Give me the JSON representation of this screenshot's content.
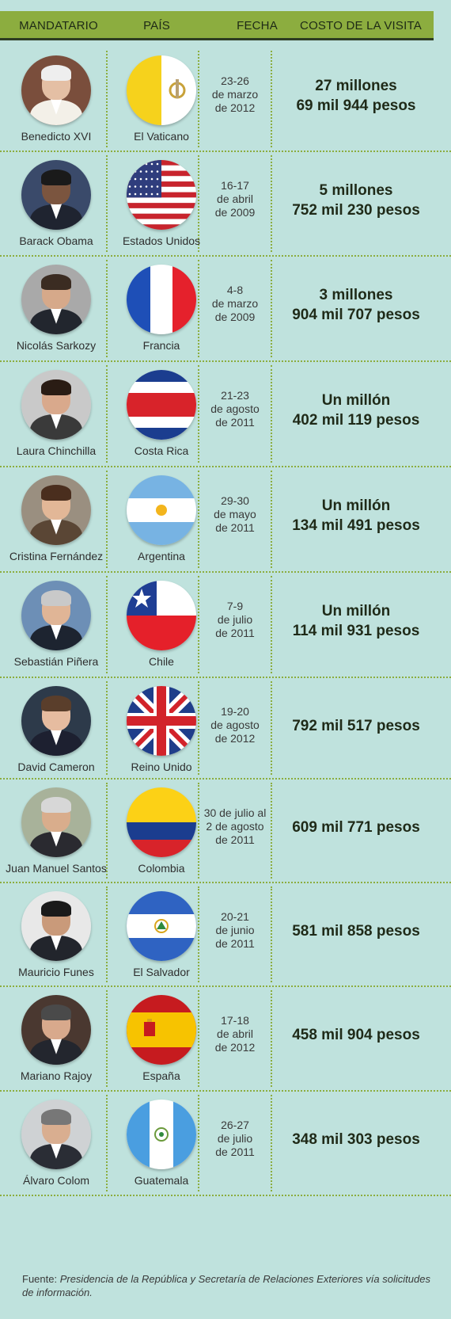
{
  "header": {
    "col_mandatario": "MANDATARIO",
    "col_pais": "PAÍS",
    "col_fecha": "FECHA",
    "col_costo": "COSTO DE LA VISITA"
  },
  "colors": {
    "background": "#bfe2dd",
    "accent": "#8cad3f",
    "dark": "#2d3c22"
  },
  "rows": [
    {
      "leader": "Benedicto XVI",
      "country": "El Vaticano",
      "date": [
        "23-26",
        "de marzo",
        "de 2012"
      ],
      "cost": [
        "27 millones",
        "69 mil 944 pesos"
      ],
      "flag": "vatican-flag-icon"
    },
    {
      "leader": "Barack Obama",
      "country": "Estados Unidos",
      "date": [
        "16-17",
        "de abril",
        "de 2009"
      ],
      "cost": [
        "5 millones",
        "752 mil 230 pesos"
      ],
      "flag": "usa-flag-icon"
    },
    {
      "leader": "Nicolás Sarkozy",
      "country": "Francia",
      "date": [
        "4-8",
        "de marzo",
        "de 2009"
      ],
      "cost": [
        "3 millones",
        "904 mil 707 pesos"
      ],
      "flag": "france-flag-icon"
    },
    {
      "leader": "Laura Chinchilla",
      "country": "Costa Rica",
      "date": [
        "21-23",
        "de agosto",
        "de 2011"
      ],
      "cost": [
        "Un millón",
        "402 mil 119 pesos"
      ],
      "flag": "costa-rica-flag-icon"
    },
    {
      "leader": "Cristina Fernández",
      "country": "Argentina",
      "date": [
        "29-30",
        "de mayo",
        "de 2011"
      ],
      "cost": [
        "Un millón",
        "134 mil 491 pesos"
      ],
      "flag": "argentina-flag-icon"
    },
    {
      "leader": "Sebastián Piñera",
      "country": "Chile",
      "date": [
        "7-9",
        "de julio",
        "de 2011"
      ],
      "cost": [
        "Un millón",
        "114 mil 931 pesos"
      ],
      "flag": "chile-flag-icon"
    },
    {
      "leader": "David Cameron",
      "country": "Reino Unido",
      "date": [
        "19-20",
        "de agosto",
        "de 2012"
      ],
      "cost": [
        "792 mil 517 pesos"
      ],
      "flag": "uk-flag-icon"
    },
    {
      "leader": "Juan Manuel Santos",
      "country": "Colombia",
      "date": [
        "30 de julio al",
        "2 de agosto",
        "de 2011"
      ],
      "cost": [
        "609 mil 771 pesos"
      ],
      "flag": "colombia-flag-icon"
    },
    {
      "leader": "Mauricio Funes",
      "country": "El Salvador",
      "date": [
        "20-21",
        "de junio",
        "de 2011"
      ],
      "cost": [
        "581 mil 858 pesos"
      ],
      "flag": "el-salvador-flag-icon"
    },
    {
      "leader": "Mariano Rajoy",
      "country": "España",
      "date": [
        "17-18",
        "de abril",
        "de 2012"
      ],
      "cost": [
        "458 mil 904 pesos"
      ],
      "flag": "spain-flag-icon"
    },
    {
      "leader": "Álvaro Colom",
      "country": "Guatemala",
      "date": [
        "26-27",
        "de julio",
        "de 2011"
      ],
      "cost": [
        "348 mil 303 pesos"
      ],
      "flag": "guatemala-flag-icon"
    }
  ],
  "footer": {
    "prefix": "Fuente: ",
    "source": "Presidencia de la República y Secretaría de Relaciones Exteriores vía solicitudes de información."
  }
}
